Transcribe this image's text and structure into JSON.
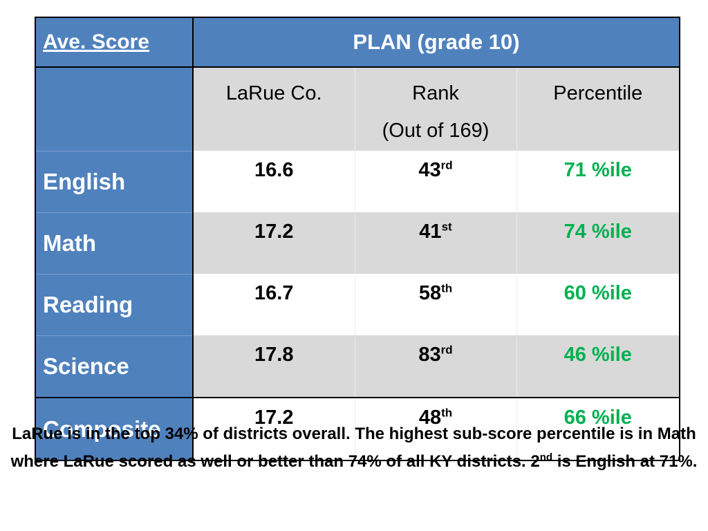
{
  "table": {
    "corner_label": "Ave. Score",
    "title": "PLAN (grade 10)",
    "columns": {
      "county": "LaRue Co.",
      "rank_line1": "Rank",
      "rank_line2": "(Out of 169)",
      "percentile": "Percentile"
    },
    "rows": [
      {
        "subject": "English",
        "score": "16.6",
        "rank": "43",
        "rank_suffix": "rd",
        "percentile": "71 %ile"
      },
      {
        "subject": "Math",
        "score": "17.2",
        "rank": "41",
        "rank_suffix": "st",
        "percentile": "74 %ile"
      },
      {
        "subject": "Reading",
        "score": "16.7",
        "rank": "58",
        "rank_suffix": "th",
        "percentile": "60 %ile"
      },
      {
        "subject": "Science",
        "score": "17.8",
        "rank": "83",
        "rank_suffix": "rd",
        "percentile": "46 %ile"
      },
      {
        "subject": "Composite",
        "score": "17.2",
        "rank": "48",
        "rank_suffix": "th",
        "percentile": "66 %ile"
      }
    ]
  },
  "caption": {
    "part1": "LaRue is in the top 34% of districts overall. The highest sub-score percentile is in Math where LaRue scored as well or better than 74% of all KY districts. 2",
    "sup": "nd",
    "part2": " is English at 71%."
  },
  "colors": {
    "header_blue": "#4f81bd",
    "row_gray": "#d9d9d9",
    "percentile_green": "#00b050"
  }
}
